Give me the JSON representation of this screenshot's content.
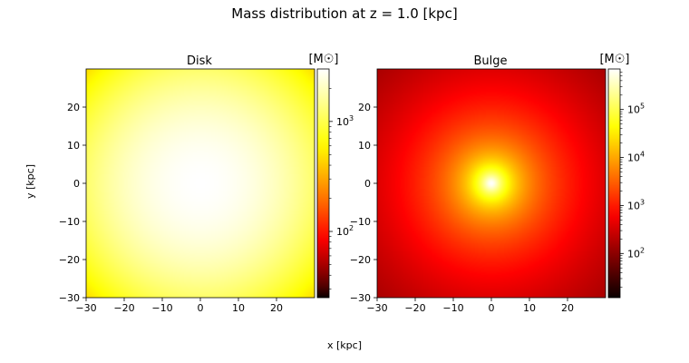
{
  "chart_data": {
    "type": "heatmap",
    "title": "Mass distribution at z = 1.0 [kpc]",
    "xlabel": "x [kpc]",
    "ylabel": "y [kpc]",
    "colormap": "hot",
    "panels": [
      {
        "title": "Disk",
        "colorbar_label": "[M☉]",
        "colorbar_scale": "log",
        "color_range": [
          25,
          3000
        ],
        "colorbar_ticks": [
          {
            "base": "10",
            "exp": "2",
            "value": 100
          },
          {
            "base": "10",
            "exp": "3",
            "value": 1000
          }
        ],
        "xlim": [
          -30,
          30
        ],
        "ylim": [
          -30,
          30
        ],
        "xticks": [
          -30,
          -20,
          -10,
          0,
          10,
          20
        ],
        "yticks": [
          -30,
          -20,
          -10,
          0,
          10,
          20
        ],
        "peak_value": 3000,
        "scale_length": 22,
        "profile": "gaussian",
        "center": [
          0,
          0
        ]
      },
      {
        "title": "Bulge",
        "colorbar_label": "[M☉]",
        "colorbar_scale": "log",
        "color_range": [
          12,
          700000
        ],
        "colorbar_ticks": [
          {
            "base": "10",
            "exp": "2",
            "value": 100
          },
          {
            "base": "10",
            "exp": "3",
            "value": 1000
          },
          {
            "base": "10",
            "exp": "4",
            "value": 10000
          },
          {
            "base": "10",
            "exp": "5",
            "value": 100000
          }
        ],
        "xlim": [
          -30,
          30
        ],
        "ylim": [
          -30,
          30
        ],
        "xticks": [
          -30,
          -20,
          -10,
          0,
          10,
          20
        ],
        "yticks": [
          -30,
          -20,
          -10,
          0,
          10,
          20
        ],
        "peak_value": 700000,
        "scale_length": 1.5,
        "profile": "plummer",
        "center": [
          0,
          0
        ]
      }
    ]
  }
}
